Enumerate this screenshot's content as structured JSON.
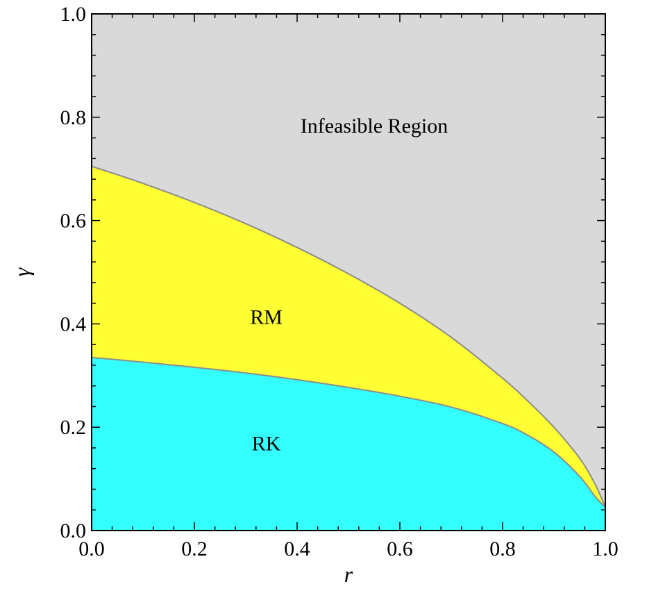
{
  "chart_data": {
    "type": "area",
    "xlabel": "r",
    "ylabel": "γ",
    "xlim": [
      0,
      1
    ],
    "ylim": [
      0,
      1
    ],
    "x_ticks": [
      "0.0",
      "0.2",
      "0.4",
      "0.6",
      "0.8",
      "1.0"
    ],
    "y_ticks": [
      "0.0",
      "0.2",
      "0.4",
      "0.6",
      "0.8",
      "1.0"
    ],
    "grid": false,
    "colors": {
      "infeasible": "#d9d9d9",
      "rm": "#ffff33",
      "rk": "#33ffff",
      "boundary": "#8c8c8c"
    },
    "annotations": [
      {
        "id": "infeasible",
        "text": "Infeasible Region",
        "x": 0.55,
        "y": 0.77
      },
      {
        "id": "rm",
        "text": "RM",
        "x": 0.34,
        "y": 0.4
      },
      {
        "id": "rk",
        "text": "RK",
        "x": 0.34,
        "y": 0.155
      }
    ],
    "series": [
      {
        "id": "upper",
        "x": [
          0.0,
          0.1,
          0.2,
          0.3,
          0.4,
          0.5,
          0.6,
          0.7,
          0.8,
          0.85,
          0.9,
          0.95,
          0.98,
          1.0
        ],
        "y": [
          0.705,
          0.672,
          0.635,
          0.594,
          0.548,
          0.497,
          0.44,
          0.374,
          0.295,
          0.25,
          0.2,
          0.14,
          0.09,
          0.045
        ]
      },
      {
        "id": "lower",
        "x": [
          0.0,
          0.1,
          0.2,
          0.3,
          0.4,
          0.5,
          0.6,
          0.7,
          0.8,
          0.85,
          0.9,
          0.95,
          0.98,
          1.0
        ],
        "y": [
          0.335,
          0.326,
          0.316,
          0.305,
          0.292,
          0.277,
          0.26,
          0.239,
          0.207,
          0.184,
          0.152,
          0.105,
          0.066,
          0.045
        ]
      }
    ]
  }
}
